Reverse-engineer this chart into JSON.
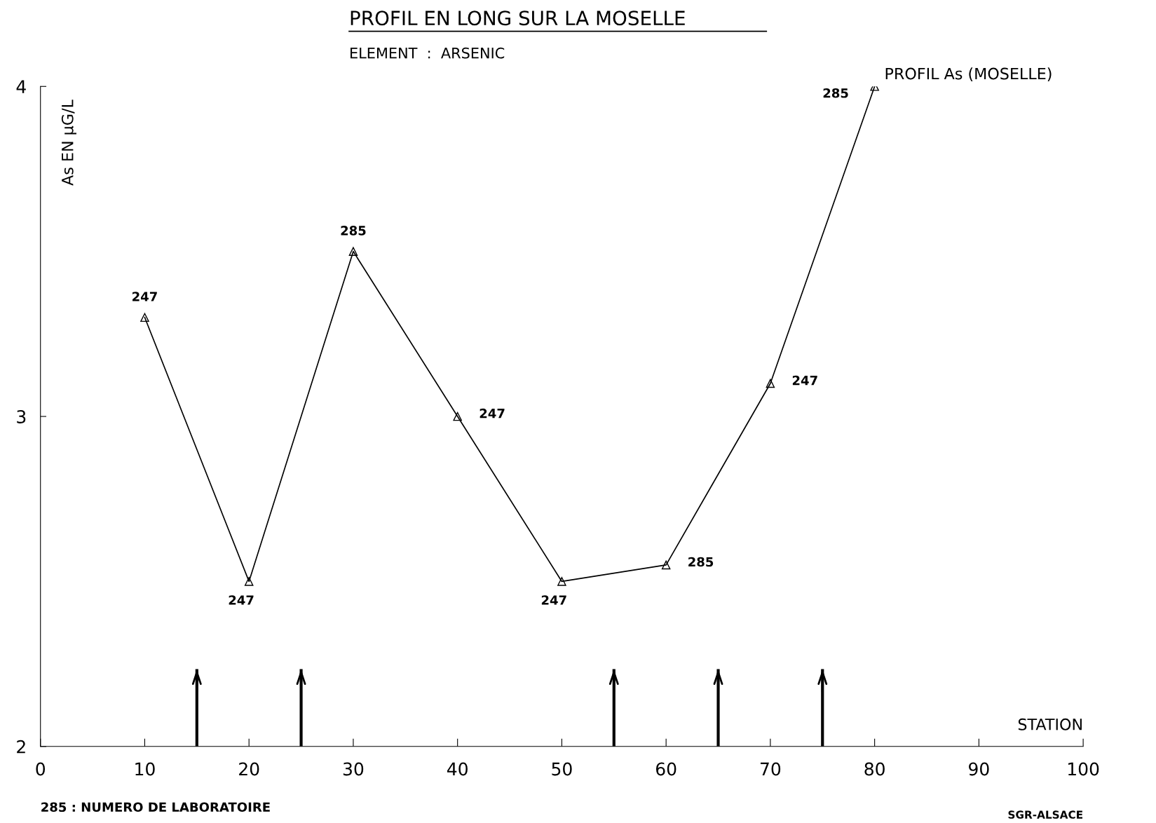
{
  "chart_data": {
    "type": "line",
    "title": "PROFIL EN LONG SUR LA MOSELLE",
    "subtitle": "ELEMENT  :  ARSENIC",
    "xlabel": "STATION",
    "ylabel": "As EN µG/L",
    "x": [
      10,
      20,
      30,
      40,
      50,
      60,
      70,
      80
    ],
    "series": [
      {
        "name": "PROFIL As (MOSELLE)",
        "color": "#000000",
        "values": [
          3.3,
          2.5,
          3.5,
          3.0,
          2.5,
          2.55,
          3.1,
          4.0
        ]
      }
    ],
    "marker": "triangle",
    "line_style": "solid",
    "grid": false,
    "xlim": [
      0,
      100
    ],
    "xticks": [
      0,
      10,
      20,
      30,
      40,
      50,
      60,
      70,
      80,
      90,
      100
    ],
    "ylim": [
      2,
      4
    ],
    "yticks": [
      2,
      3,
      4
    ],
    "ref_lines": [
      {
        "axis": "x",
        "value": 15
      },
      {
        "axis": "x",
        "value": 25
      },
      {
        "axis": "x",
        "value": 55
      },
      {
        "axis": "x",
        "value": 65
      },
      {
        "axis": "x",
        "value": 75
      }
    ],
    "annotations": [
      {
        "text": "247",
        "x": 10,
        "y": 3.3
      },
      {
        "text": "247",
        "x": 20,
        "y": 2.5
      },
      {
        "text": "285",
        "x": 30,
        "y": 3.5
      },
      {
        "text": "247",
        "x": 40,
        "y": 3.0
      },
      {
        "text": "247",
        "x": 50,
        "y": 2.5
      },
      {
        "text": "285",
        "x": 60,
        "y": 2.55
      },
      {
        "text": "247",
        "x": 70,
        "y": 3.1
      },
      {
        "text": "285",
        "x": 80,
        "y": 4.0
      },
      "285 : NUMERO DE LABORATOIRE",
      "SGR-ALSACE"
    ]
  }
}
